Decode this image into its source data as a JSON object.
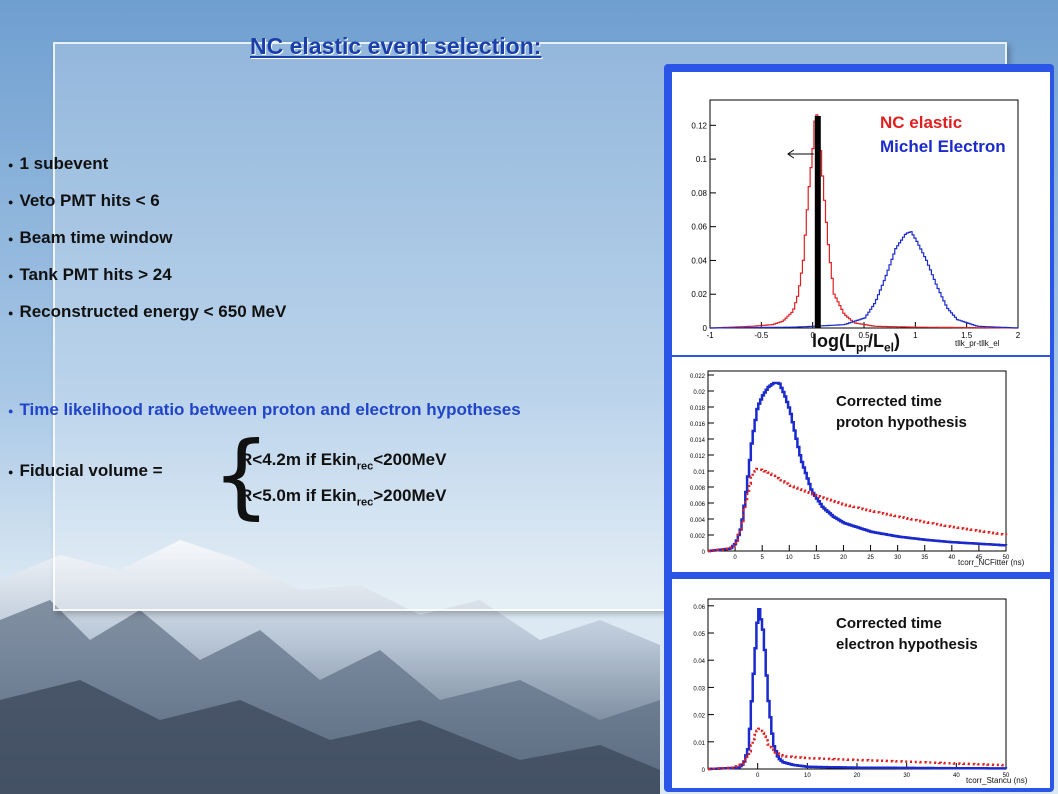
{
  "slide": {
    "title": "NC elastic event selection:",
    "bullets": [
      "1 subevent",
      "Veto PMT hits < 6",
      "Beam time window",
      "Tank PMT hits > 24",
      "Reconstructed energy < 650 MeV"
    ],
    "time_likelihood_bullet": "Time likelihood ratio between proton and electron hypotheses",
    "fiducial_label": "Fiducial volume =",
    "fiducial_brace": "{",
    "cond1": {
      "prefix": "R<4.2m if  Ekin",
      "sub": "rec",
      "suffix": "<200MeV"
    },
    "cond2": {
      "prefix": "R<5.0m if  Ekin",
      "sub": "rec",
      "suffix": ">200MeV"
    }
  },
  "colors": {
    "title": "#1a3fa8",
    "blue_text": "#2045c8",
    "frame": "#2a55e6",
    "nc_red": "#e02020",
    "michel_blue": "#1a2acc"
  },
  "chart_data": [
    {
      "type": "line",
      "legend": [
        "NC elastic",
        "Michel Electron"
      ],
      "xaxis_name": "tllk_pr-tllk_el",
      "xlabel": {
        "main": "log(L",
        "sub1": "pr",
        "mid": "/L",
        "sub2": "el",
        "end": ")"
      },
      "xticks": [
        "-1",
        "-0.5",
        "0",
        "0.5",
        "1",
        "1.5",
        "2"
      ],
      "yticks": [
        "0",
        "0.02",
        "0.04",
        "0.06",
        "0.08",
        "0.1",
        "0.12"
      ],
      "xlim": [
        -1,
        2
      ],
      "ylim": [
        0,
        0.135
      ],
      "cut": 0.05,
      "series": [
        {
          "name": "NC elastic",
          "color": "#e02020",
          "x": [
            -1.0,
            -0.8,
            -0.6,
            -0.4,
            -0.3,
            -0.2,
            -0.15,
            -0.1,
            -0.05,
            0.0,
            0.02,
            0.05,
            0.1,
            0.15,
            0.2,
            0.3,
            0.4,
            0.6,
            1.0,
            2.0
          ],
          "y": [
            0.0,
            0.0005,
            0.001,
            0.002,
            0.004,
            0.01,
            0.02,
            0.04,
            0.08,
            0.11,
            0.13,
            0.12,
            0.08,
            0.045,
            0.02,
            0.008,
            0.003,
            0.001,
            0.0005,
            0.0
          ]
        },
        {
          "name": "Michel Electron",
          "color": "#1a2acc",
          "x": [
            -1.0,
            -0.2,
            0.0,
            0.3,
            0.5,
            0.6,
            0.7,
            0.8,
            0.9,
            0.95,
            1.0,
            1.1,
            1.2,
            1.3,
            1.4,
            1.6,
            2.0
          ],
          "y": [
            0.0,
            0.0005,
            0.001,
            0.002,
            0.006,
            0.015,
            0.03,
            0.047,
            0.056,
            0.057,
            0.052,
            0.04,
            0.025,
            0.012,
            0.005,
            0.001,
            0.0
          ]
        }
      ]
    },
    {
      "type": "line",
      "label": [
        "Corrected time",
        "proton hypothesis"
      ],
      "xaxis_name": "tcorr_NCFitter (ns)",
      "xticks": [
        "0",
        "5",
        "10",
        "15",
        "20",
        "25",
        "30",
        "35",
        "40",
        "45",
        "50"
      ],
      "yticks": [
        "0",
        "0.002",
        "0.004",
        "0.006",
        "0.008",
        "0.01",
        "0.012",
        "0.014",
        "0.016",
        "0.018",
        "0.02",
        "0.022"
      ],
      "xlim": [
        -5,
        50
      ],
      "ylim": [
        0,
        0.0225
      ],
      "series": [
        {
          "style": "solid",
          "color": "#1a2acc",
          "x": [
            -5,
            -1,
            0,
            1,
            2,
            3,
            4,
            5,
            6,
            7,
            8,
            9,
            10,
            11,
            12,
            14,
            16,
            18,
            20,
            25,
            30,
            35,
            40,
            45,
            50
          ],
          "y": [
            0,
            0.0003,
            0.001,
            0.003,
            0.008,
            0.014,
            0.018,
            0.0195,
            0.0205,
            0.021,
            0.021,
            0.0195,
            0.0175,
            0.0145,
            0.0115,
            0.0075,
            0.0055,
            0.0043,
            0.0035,
            0.0024,
            0.0018,
            0.0014,
            0.0011,
            0.0009,
            0.0007
          ]
        },
        {
          "style": "dotted",
          "color": "#e02020",
          "x": [
            -5,
            -1,
            0,
            1,
            2,
            3,
            4,
            6,
            8,
            10,
            15,
            20,
            25,
            30,
            35,
            40,
            45,
            50
          ],
          "y": [
            0,
            0.0003,
            0.001,
            0.003,
            0.007,
            0.0095,
            0.0103,
            0.0098,
            0.009,
            0.0082,
            0.0069,
            0.0058,
            0.005,
            0.0043,
            0.0036,
            0.003,
            0.0025,
            0.002
          ]
        }
      ]
    },
    {
      "type": "line",
      "label": [
        "Corrected time",
        "electron hypothesis"
      ],
      "xaxis_name": "tcorr_Stancu (ns)",
      "xticks": [
        "0",
        "10",
        "20",
        "30",
        "40",
        "50"
      ],
      "yticks": [
        "0",
        "0.01",
        "0.02",
        "0.03",
        "0.04",
        "0.05",
        "0.06"
      ],
      "xlim": [
        -10,
        50
      ],
      "ylim": [
        0,
        0.0625
      ],
      "series": [
        {
          "style": "solid",
          "color": "#1a2acc",
          "x": [
            -10,
            -4,
            -3,
            -2,
            -1,
            0,
            1,
            2,
            3,
            4,
            5,
            7,
            10,
            20,
            30,
            40,
            50
          ],
          "y": [
            0,
            0.0005,
            0.002,
            0.008,
            0.035,
            0.06,
            0.05,
            0.025,
            0.009,
            0.004,
            0.0025,
            0.0015,
            0.0008,
            0.0005,
            0.0004,
            0.0003,
            0.0002
          ]
        },
        {
          "style": "dotted",
          "color": "#e02020",
          "x": [
            -10,
            -5,
            -3,
            -2,
            -1,
            0,
            1,
            2,
            3,
            5,
            8,
            10,
            20,
            30,
            40,
            50
          ],
          "y": [
            0,
            0.0005,
            0.002,
            0.005,
            0.011,
            0.015,
            0.013,
            0.009,
            0.0065,
            0.0047,
            0.0043,
            0.004,
            0.0033,
            0.0027,
            0.002,
            0.0014
          ]
        }
      ]
    }
  ]
}
